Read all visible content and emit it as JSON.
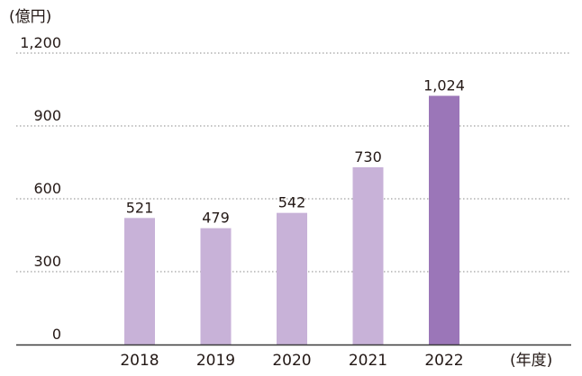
{
  "chart_data": {
    "type": "bar",
    "y_unit_label": "(億円)",
    "x_unit_label": "(年度)",
    "categories": [
      "2018",
      "2019",
      "2020",
      "2021",
      "2022"
    ],
    "values": [
      521,
      479,
      542,
      730,
      1024
    ],
    "value_labels": [
      "521",
      "479",
      "542",
      "730",
      "1,024"
    ],
    "y_ticks": [
      0,
      300,
      600,
      900,
      1200
    ],
    "y_tick_labels": [
      "0",
      "300",
      "600",
      "900",
      "1,200"
    ],
    "ylim": [
      0,
      1200
    ],
    "grid": true,
    "grid_style": "dotted",
    "bar_color": "#c8b2d8",
    "highlight_color": "#9b76b8",
    "highlight_index": 4,
    "axis_color": "#3a3a3a",
    "grid_color": "#8a8a8a",
    "text_color": "#231815"
  }
}
